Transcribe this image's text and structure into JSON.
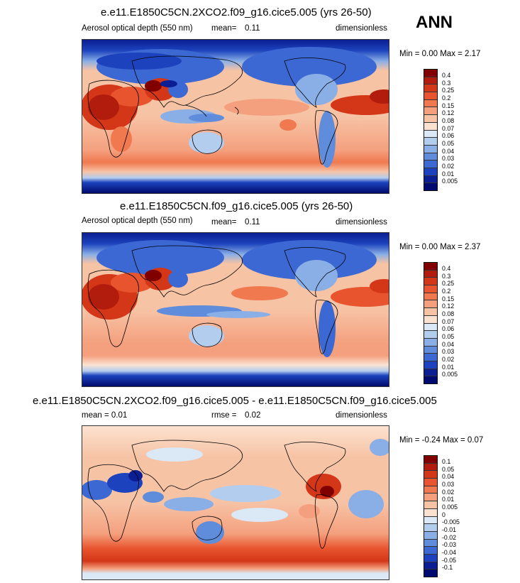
{
  "season": "ANN",
  "panels": [
    {
      "title": "e.e11.E1850C5CN.2XCO2.f09_g16.cice5.005 (yrs 26-50)",
      "left_label": "Aerosol optical depth (550 nm)",
      "stat_label": "mean=",
      "stat_value": "0.11",
      "units": "dimensionless",
      "minmax": "Min =   0.00 Max =   2.17",
      "colorbar": {
        "labels": [
          "0.4",
          "0.3",
          "0.25",
          "0.2",
          "0.15",
          "0.12",
          "0.08",
          "0.07",
          "0.06",
          "0.05",
          "0.04",
          "0.03",
          "0.02",
          "0.01",
          "0.005"
        ],
        "colors": [
          "#800000",
          "#b11c0c",
          "#d33718",
          "#e8542e",
          "#f07950",
          "#f4a07e",
          "#f7c3a5",
          "#fbe2d0",
          "#dbe8f5",
          "#b3cdef",
          "#8aafe6",
          "#5f8ddb",
          "#3b68d2",
          "#1c43bd",
          "#0c1e93",
          "#000a6e"
        ]
      }
    },
    {
      "title": "e.e11.E1850C5CN.f09_g16.cice5.005 (yrs 26-50)",
      "left_label": "Aerosol optical depth (550 nm)",
      "stat_label": "mean=",
      "stat_value": "0.11",
      "units": "dimensionless",
      "minmax": "Min =   0.00 Max =   2.37",
      "colorbar": {
        "labels": [
          "0.4",
          "0.3",
          "0.25",
          "0.2",
          "0.15",
          "0.12",
          "0.08",
          "0.07",
          "0.06",
          "0.05",
          "0.04",
          "0.03",
          "0.02",
          "0.01",
          "0.005"
        ],
        "colors": [
          "#800000",
          "#b11c0c",
          "#d33718",
          "#e8542e",
          "#f07950",
          "#f4a07e",
          "#f7c3a5",
          "#fbe2d0",
          "#dbe8f5",
          "#b3cdef",
          "#8aafe6",
          "#5f8ddb",
          "#3b68d2",
          "#1c43bd",
          "#0c1e93",
          "#000a6e"
        ]
      }
    },
    {
      "title": "e.e11.E1850C5CN.2XCO2.f09_g16.cice5.005 - e.e11.E1850C5CN.f09_g16.cice5.005",
      "left_label": "mean =   0.01",
      "stat_label": "rmse =",
      "stat_value": "0.02",
      "units": "dimensionless",
      "minmax": "Min =  -0.24 Max =   0.07",
      "colorbar": {
        "labels": [
          "0.1",
          "0.05",
          "0.04",
          "0.03",
          "0.02",
          "0.01",
          "0.005",
          "0",
          "-0.005",
          "-0.01",
          "-0.02",
          "-0.03",
          "-0.04",
          "-0.05",
          "-0.1"
        ],
        "colors": [
          "#800000",
          "#b11c0c",
          "#d33718",
          "#e8542e",
          "#f07950",
          "#f4a07e",
          "#f7c3a5",
          "#fbe2d0",
          "#dbe8f5",
          "#b3cdef",
          "#8aafe6",
          "#5f8ddb",
          "#3b68d2",
          "#1c43bd",
          "#0c1e93",
          "#000a6e"
        ]
      }
    }
  ]
}
